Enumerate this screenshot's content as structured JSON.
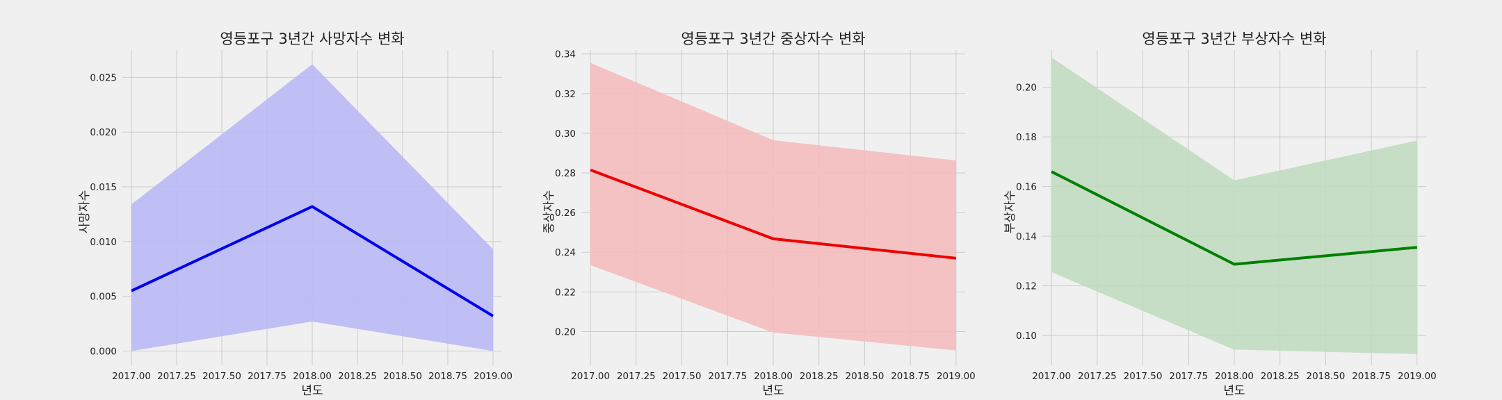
{
  "chart_data": [
    {
      "type": "line",
      "title": "영등포구 3년간 사망자수 변화",
      "xlabel": "년도",
      "ylabel": "사망자수",
      "x": [
        2017,
        2018,
        2019
      ],
      "series": [
        {
          "values": [
            0.0055,
            0.0132,
            0.0032
          ],
          "ci_low": [
            0.0,
            0.0027,
            0.0
          ],
          "ci_high": [
            0.0134,
            0.0262,
            0.0093
          ]
        }
      ],
      "xlim": [
        2016.95,
        2019.05
      ],
      "ylim": [
        -0.0013,
        0.0275
      ],
      "xticks": [
        2017.0,
        2017.25,
        2017.5,
        2017.75,
        2018.0,
        2018.25,
        2018.5,
        2018.75,
        2019.0
      ],
      "xtick_labels": [
        "2017.00",
        "2017.25",
        "2017.50",
        "2017.75",
        "2018.00",
        "2018.25",
        "2018.50",
        "2018.75",
        "2019.00"
      ],
      "yticks": [
        0.0,
        0.005,
        0.01,
        0.015,
        0.02,
        0.025
      ],
      "ytick_labels": [
        "0.000",
        "0.005",
        "0.010",
        "0.015",
        "0.020",
        "0.025"
      ],
      "line_color": "#0000ee",
      "fill_color": "#b9b9f5",
      "grid": true
    },
    {
      "type": "line",
      "title": "영등포구 3년간 중상자수 변화",
      "xlabel": "년도",
      "ylabel": "중상자수",
      "x": [
        2017,
        2018,
        2019
      ],
      "series": [
        {
          "values": [
            0.2815,
            0.2468,
            0.237
          ],
          "ci_low": [
            0.2335,
            0.1995,
            0.1905
          ],
          "ci_high": [
            0.3355,
            0.2965,
            0.2863
          ]
        }
      ],
      "xlim": [
        2016.95,
        2019.05
      ],
      "ylim": [
        0.183,
        0.342
      ],
      "xticks": [
        2017.0,
        2017.25,
        2017.5,
        2017.75,
        2018.0,
        2018.25,
        2018.5,
        2018.75,
        2019.0
      ],
      "xtick_labels": [
        "2017.00",
        "2017.25",
        "2017.50",
        "2017.75",
        "2018.00",
        "2018.25",
        "2018.50",
        "2018.75",
        "2019.00"
      ],
      "yticks": [
        0.2,
        0.22,
        0.24,
        0.26,
        0.28,
        0.3,
        0.32,
        0.34
      ],
      "ytick_labels": [
        "0.20",
        "0.22",
        "0.24",
        "0.26",
        "0.28",
        "0.30",
        "0.32",
        "0.34"
      ],
      "line_color": "#ee0000",
      "fill_color": "#f4bdbd",
      "grid": true
    },
    {
      "type": "line",
      "title": "영등포구 3년간 부상자수 변화",
      "xlabel": "년도",
      "ylabel": "부상자수",
      "x": [
        2017,
        2018,
        2019
      ],
      "series": [
        {
          "values": [
            0.166,
            0.1287,
            0.1355
          ],
          "ci_low": [
            0.1255,
            0.0943,
            0.0925
          ],
          "ci_high": [
            0.212,
            0.1625,
            0.1785
          ]
        }
      ],
      "xlim": [
        2016.95,
        2019.05
      ],
      "ylim": [
        0.088,
        0.215
      ],
      "xticks": [
        2017.0,
        2017.25,
        2017.5,
        2017.75,
        2018.0,
        2018.25,
        2018.5,
        2018.75,
        2019.0
      ],
      "xtick_labels": [
        "2017.00",
        "2017.25",
        "2017.50",
        "2017.75",
        "2018.00",
        "2018.25",
        "2018.50",
        "2018.75",
        "2019.00"
      ],
      "yticks": [
        0.1,
        0.12,
        0.14,
        0.16,
        0.18,
        0.2
      ],
      "ytick_labels": [
        "0.10",
        "0.12",
        "0.14",
        "0.16",
        "0.18",
        "0.20"
      ],
      "line_color": "#007f00",
      "fill_color": "#c0dbc0",
      "grid": true
    }
  ]
}
